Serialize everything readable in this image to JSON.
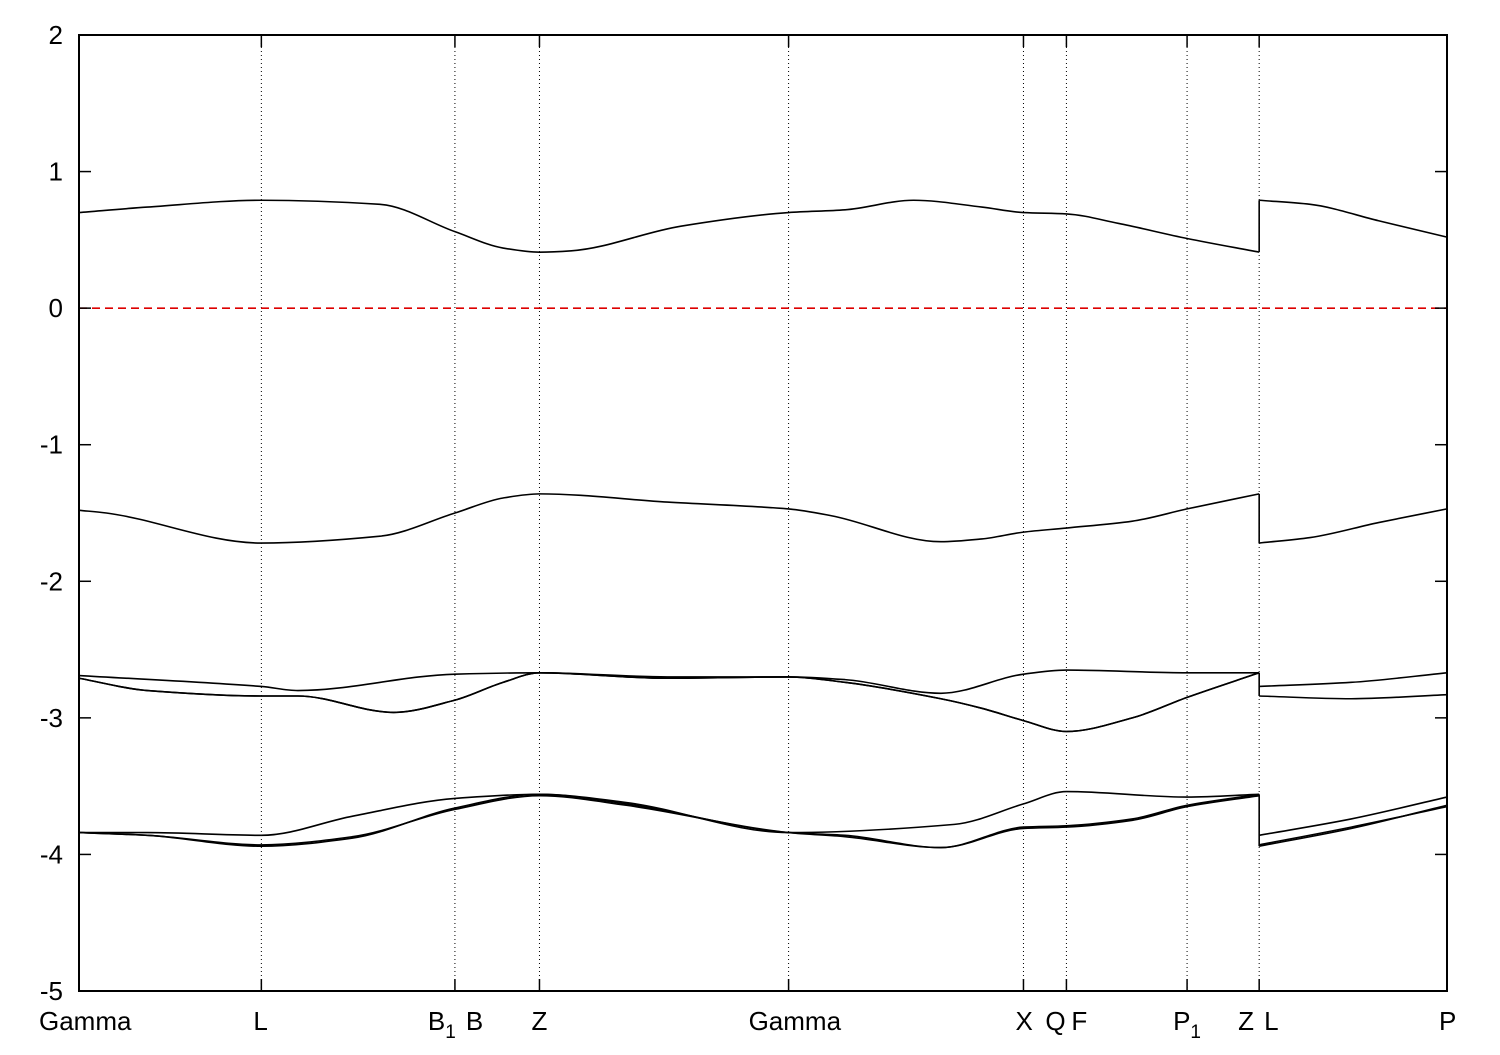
{
  "chart_data": {
    "type": "line",
    "title": "",
    "xlabel": "",
    "ylabel": "",
    "ylim": [
      -5,
      2
    ],
    "y_ticks": [
      -5,
      -4,
      -3,
      -2,
      -1,
      0,
      1,
      2
    ],
    "grid": "vertical dotted lines at high-symmetry points",
    "k_points": [
      {
        "name": "Gamma",
        "sub": "",
        "x": 0.0
      },
      {
        "name": "L",
        "sub": "",
        "x": 0.1333
      },
      {
        "name": "B",
        "sub": "1",
        "x": 0.2748
      },
      {
        "name": "B",
        "sub": "",
        "x": 0.2748
      },
      {
        "name": "Z",
        "sub": "",
        "x": 0.3366
      },
      {
        "name": "Gamma",
        "sub": "",
        "x": 0.5187
      },
      {
        "name": "X",
        "sub": "",
        "x": 0.6904
      },
      {
        "name": "Q",
        "sub": "",
        "x": 0.7218
      },
      {
        "name": "F",
        "sub": "",
        "x": 0.7218
      },
      {
        "name": "P",
        "sub": "1",
        "x": 0.81
      },
      {
        "name": "Z",
        "sub": "",
        "x": 0.8627
      },
      {
        "name": "L",
        "sub": "",
        "x": 0.8627
      },
      {
        "name": "P",
        "sub": "",
        "x": 1.0
      }
    ],
    "fermi_level": {
      "y": 0,
      "color": "#dd0000",
      "style": "dashed"
    },
    "line_color": "#000000",
    "series": [
      {
        "values": [
          [
            0.0,
            0.7
          ],
          [
            0.05,
            0.74
          ],
          [
            0.1333,
            0.79
          ],
          [
            0.22,
            0.76
          ],
          [
            0.2748,
            0.56
          ],
          [
            0.31,
            0.44
          ],
          [
            0.3366,
            0.41
          ],
          [
            0.36,
            0.42
          ],
          [
            0.44,
            0.6
          ],
          [
            0.5187,
            0.7
          ],
          [
            0.56,
            0.72
          ],
          [
            0.61,
            0.79
          ],
          [
            0.66,
            0.74
          ],
          [
            0.6904,
            0.7
          ],
          [
            0.7218,
            0.69
          ],
          [
            0.76,
            0.62
          ],
          [
            0.81,
            0.51
          ],
          [
            0.8627,
            0.41
          ]
        ]
      },
      {
        "values": [
          [
            0.8627,
            0.79
          ],
          [
            0.9,
            0.76
          ],
          [
            0.95,
            0.64
          ],
          [
            1.0,
            0.52
          ]
        ]
      },
      {
        "values": [
          [
            0.0,
            -1.48
          ],
          [
            0.02,
            -1.5
          ],
          [
            0.1333,
            -1.72
          ],
          [
            0.22,
            -1.67
          ],
          [
            0.2748,
            -1.5
          ],
          [
            0.31,
            -1.39
          ],
          [
            0.3366,
            -1.36
          ],
          [
            0.43,
            -1.42
          ],
          [
            0.5187,
            -1.47
          ],
          [
            0.55,
            -1.52
          ],
          [
            0.63,
            -1.71
          ],
          [
            0.66,
            -1.69
          ],
          [
            0.6904,
            -1.64
          ],
          [
            0.7218,
            -1.61
          ],
          [
            0.77,
            -1.56
          ],
          [
            0.81,
            -1.47
          ],
          [
            0.8627,
            -1.36
          ]
        ]
      },
      {
        "values": [
          [
            0.8627,
            -1.72
          ],
          [
            0.9,
            -1.68
          ],
          [
            0.95,
            -1.57
          ],
          [
            1.0,
            -1.47
          ]
        ]
      },
      {
        "values": [
          [
            0.0,
            -2.69
          ],
          [
            0.1333,
            -2.77
          ],
          [
            0.16,
            -2.8
          ],
          [
            0.2748,
            -2.68
          ],
          [
            0.3366,
            -2.67
          ],
          [
            0.43,
            -2.7
          ],
          [
            0.5187,
            -2.7
          ],
          [
            0.56,
            -2.72
          ],
          [
            0.63,
            -2.82
          ],
          [
            0.6904,
            -2.68
          ],
          [
            0.7218,
            -2.65
          ],
          [
            0.81,
            -2.67
          ],
          [
            0.8627,
            -2.67
          ]
        ]
      },
      {
        "values": [
          [
            0.0,
            -2.71
          ],
          [
            0.05,
            -2.8
          ],
          [
            0.1333,
            -2.84
          ],
          [
            0.16,
            -2.84
          ],
          [
            0.23,
            -2.96
          ],
          [
            0.2748,
            -2.87
          ],
          [
            0.31,
            -2.74
          ],
          [
            0.3366,
            -2.67
          ],
          [
            0.43,
            -2.71
          ],
          [
            0.5187,
            -2.7
          ],
          [
            0.56,
            -2.74
          ],
          [
            0.63,
            -2.86
          ],
          [
            0.66,
            -2.93
          ],
          [
            0.6904,
            -3.02
          ],
          [
            0.7218,
            -3.1
          ],
          [
            0.77,
            -3.0
          ],
          [
            0.81,
            -2.85
          ],
          [
            0.8627,
            -2.67
          ]
        ]
      },
      {
        "values": [
          [
            0.0,
            -2.71
          ],
          [
            0.05,
            -2.8
          ],
          [
            0.1333,
            -2.84
          ],
          [
            0.16,
            -2.84
          ],
          [
            0.23,
            -2.96
          ],
          [
            0.2748,
            -2.87
          ],
          [
            0.31,
            -2.74
          ],
          [
            0.3366,
            -2.67
          ],
          [
            0.43,
            -2.71
          ],
          [
            0.5187,
            -2.7
          ],
          [
            0.56,
            -2.74
          ],
          [
            0.63,
            -2.86
          ],
          [
            0.66,
            -2.93
          ],
          [
            0.6904,
            -3.02
          ],
          [
            0.7218,
            -3.1
          ],
          [
            0.77,
            -3.0
          ],
          [
            0.81,
            -2.85
          ],
          [
            0.8627,
            -2.67
          ]
        ]
      },
      {
        "values": [
          [
            0.8627,
            -2.77
          ],
          [
            0.93,
            -2.74
          ],
          [
            1.0,
            -2.67
          ]
        ]
      },
      {
        "values": [
          [
            0.8627,
            -2.84
          ],
          [
            0.93,
            -2.86
          ],
          [
            1.0,
            -2.83
          ]
        ]
      },
      {
        "values": [
          [
            0.0,
            -3.84
          ],
          [
            0.05,
            -3.84
          ],
          [
            0.1333,
            -3.86
          ],
          [
            0.2,
            -3.72
          ],
          [
            0.2748,
            -3.59
          ],
          [
            0.3366,
            -3.56
          ],
          [
            0.4,
            -3.62
          ],
          [
            0.5187,
            -3.84
          ],
          [
            0.64,
            -3.78
          ],
          [
            0.6904,
            -3.63
          ],
          [
            0.7218,
            -3.54
          ],
          [
            0.81,
            -3.58
          ],
          [
            0.8627,
            -3.56
          ]
        ]
      },
      {
        "values": [
          [
            0.0,
            -3.84
          ],
          [
            0.05,
            -3.86
          ],
          [
            0.1333,
            -3.94
          ],
          [
            0.2,
            -3.88
          ],
          [
            0.2748,
            -3.66
          ],
          [
            0.3366,
            -3.56
          ],
          [
            0.4,
            -3.63
          ],
          [
            0.5187,
            -3.84
          ],
          [
            0.56,
            -3.86
          ],
          [
            0.63,
            -3.95
          ],
          [
            0.6904,
            -3.8
          ],
          [
            0.7218,
            -3.79
          ],
          [
            0.77,
            -3.74
          ],
          [
            0.81,
            -3.64
          ],
          [
            0.8627,
            -3.56
          ]
        ]
      },
      {
        "values": [
          [
            0.0,
            -3.84
          ],
          [
            0.05,
            -3.86
          ],
          [
            0.1333,
            -3.93
          ],
          [
            0.2,
            -3.87
          ],
          [
            0.2748,
            -3.67
          ],
          [
            0.3366,
            -3.57
          ],
          [
            0.4,
            -3.64
          ],
          [
            0.5187,
            -3.84
          ],
          [
            0.56,
            -3.87
          ],
          [
            0.63,
            -3.95
          ],
          [
            0.6904,
            -3.81
          ],
          [
            0.7218,
            -3.8
          ],
          [
            0.77,
            -3.75
          ],
          [
            0.81,
            -3.65
          ],
          [
            0.8627,
            -3.57
          ]
        ]
      },
      {
        "values": [
          [
            0.8627,
            -3.86
          ],
          [
            0.93,
            -3.74
          ],
          [
            1.0,
            -3.58
          ]
        ]
      },
      {
        "values": [
          [
            0.8627,
            -3.94
          ],
          [
            0.93,
            -3.81
          ],
          [
            1.0,
            -3.64
          ]
        ]
      },
      {
        "values": [
          [
            0.8627,
            -3.93
          ],
          [
            0.93,
            -3.8
          ],
          [
            1.0,
            -3.65
          ]
        ]
      }
    ]
  }
}
